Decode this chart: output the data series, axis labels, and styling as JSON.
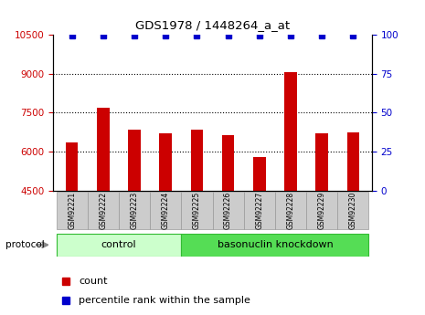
{
  "title": "GDS1978 / 1448264_a_at",
  "samples": [
    "GSM92221",
    "GSM92222",
    "GSM92223",
    "GSM92224",
    "GSM92225",
    "GSM92226",
    "GSM92227",
    "GSM92228",
    "GSM92229",
    "GSM92230"
  ],
  "counts": [
    6350,
    7700,
    6850,
    6700,
    6850,
    6650,
    5800,
    9050,
    6700,
    6750
  ],
  "percentile_ranks": [
    100,
    100,
    100,
    100,
    100,
    100,
    100,
    100,
    100,
    100
  ],
  "ylim_left": [
    4500,
    10500
  ],
  "ylim_right": [
    0,
    100
  ],
  "yticks_left": [
    4500,
    6000,
    7500,
    9000,
    10500
  ],
  "yticks_right": [
    0,
    25,
    50,
    75,
    100
  ],
  "bar_color": "#cc0000",
  "dot_color": "#0000cc",
  "bg_color": "#ffffff",
  "grid_dotted_vals": [
    6000,
    7500,
    9000
  ],
  "control_count": 4,
  "control_label": "control",
  "knockdown_label": "basonuclin knockdown",
  "protocol_label": "protocol",
  "legend_count": "count",
  "legend_pct": "percentile rank within the sample",
  "control_color": "#ccffcc",
  "knockdown_color": "#55dd55",
  "sample_box_color": "#cccccc",
  "tick_color_left": "#cc0000",
  "tick_color_right": "#0000cc",
  "bar_width": 0.4
}
